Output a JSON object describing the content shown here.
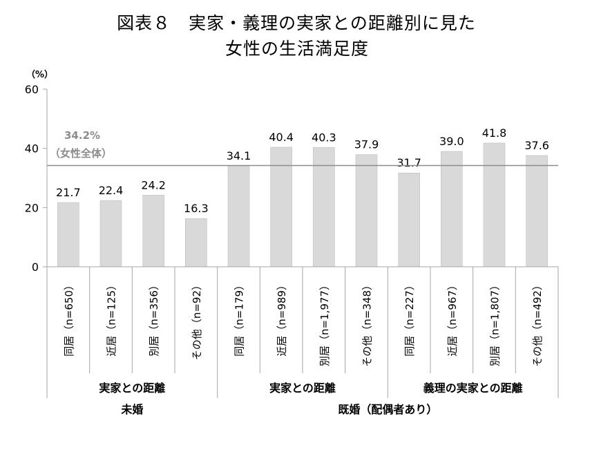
{
  "title_line1": "図表８　実家・義理の実家との距離別に見た",
  "title_line2": "女性の生活満足度",
  "chart_data": {
    "type": "bar",
    "ylabel": "（%）",
    "ylim": [
      0,
      60
    ],
    "yticks": [
      0,
      20,
      40,
      60
    ],
    "grid": false,
    "bar_color": "#d9d9d9",
    "reference_line": {
      "value": 34.2,
      "label_value": "34.2%",
      "label_text": "（女性全体）",
      "color": "#8c8c8c"
    },
    "categories": [
      "同居（n=650）",
      "近居（n=125）",
      "別居（n=356）",
      "その他（n=92）",
      "同居（n=179）",
      "近居（n=989）",
      "別居（n=1,977）",
      "その他（n=348）",
      "同居（n=227）",
      "近居（n=967）",
      "別居（n=1,807）",
      "その他（n=492）"
    ],
    "values": [
      21.7,
      22.4,
      24.2,
      16.3,
      34.1,
      40.4,
      40.3,
      37.9,
      31.7,
      39.0,
      41.8,
      37.6
    ],
    "value_labels": [
      "21.7",
      "22.4",
      "24.2",
      "16.3",
      "34.1",
      "40.4",
      "40.3",
      "37.9",
      "31.7",
      "39.0",
      "41.8",
      "37.6"
    ],
    "group_labels": [
      {
        "label": "実家との距離",
        "start": 0,
        "end": 3
      },
      {
        "label": "実家との距離",
        "start": 4,
        "end": 7
      },
      {
        "label": "義理の実家との距離",
        "start": 8,
        "end": 11
      }
    ],
    "super_groups": [
      {
        "label": "未婚",
        "start": 0,
        "end": 3
      },
      {
        "label": "既婚（配偶者あり）",
        "start": 4,
        "end": 11
      }
    ]
  }
}
